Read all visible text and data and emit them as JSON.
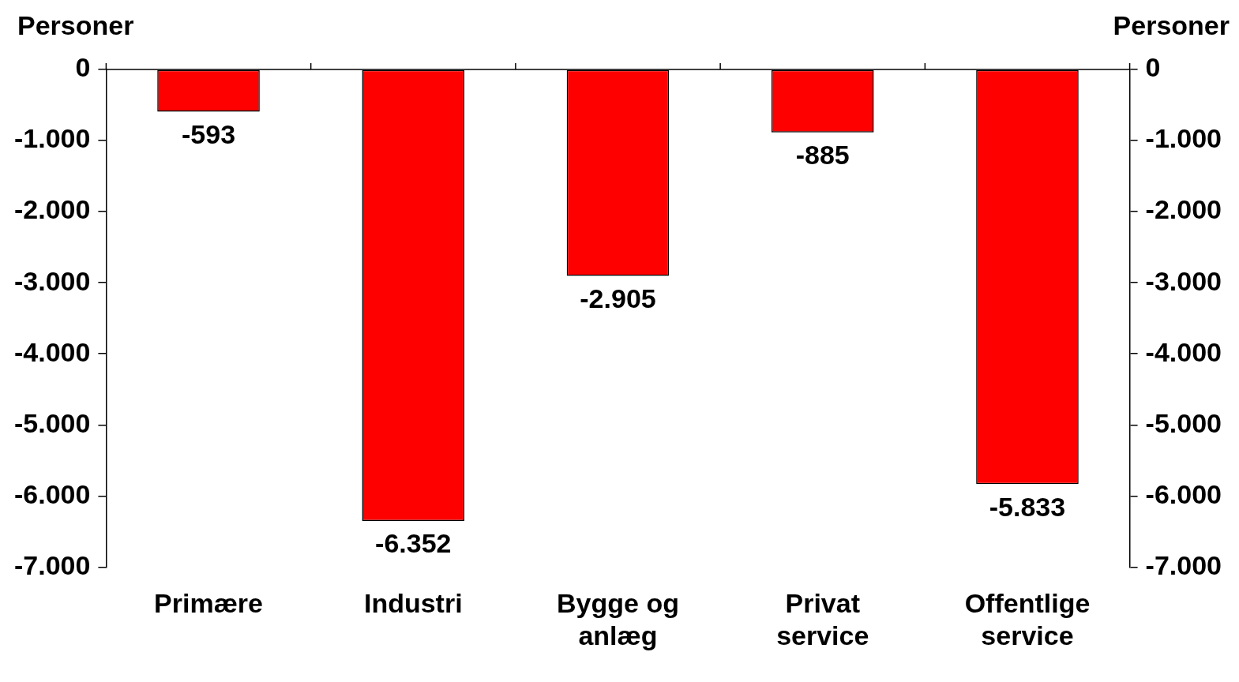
{
  "chart_data": {
    "type": "bar",
    "ylabel": "Personer",
    "y2label": "Personer",
    "categories": [
      "Primære",
      "Industri",
      "Bygge og anlæg",
      "Privat service",
      "Offentlige service"
    ],
    "values": [
      -593,
      -6352,
      -2905,
      -885,
      -5833
    ],
    "color": "#ff0000",
    "data_labels": true,
    "value_labels": [
      "-593",
      "-6.352",
      "-2.905",
      "-885",
      "-5.833"
    ],
    "ylim": [
      -7000,
      0
    ],
    "yticks": [
      {
        "value": -7000,
        "label": "-7.000"
      },
      {
        "value": -6000,
        "label": "-6.000"
      },
      {
        "value": -5000,
        "label": "-5.000"
      },
      {
        "value": -4000,
        "label": "-4.000"
      },
      {
        "value": -3000,
        "label": "-3.000"
      },
      {
        "value": -2000,
        "label": "-2.000"
      },
      {
        "value": -1000,
        "label": "-1.000"
      },
      {
        "value": 0,
        "label": "0"
      }
    ],
    "y2lim": [
      -7000,
      0
    ],
    "y2ticks": [
      {
        "value": -7000,
        "label": "-7.000"
      },
      {
        "value": -6000,
        "label": "-6.000"
      },
      {
        "value": -5000,
        "label": "-5.000"
      },
      {
        "value": -4000,
        "label": "-4.000"
      },
      {
        "value": -3000,
        "label": "-3.000"
      },
      {
        "value": -2000,
        "label": "-2.000"
      },
      {
        "value": -1000,
        "label": "-1.000"
      },
      {
        "value": 0,
        "label": "0"
      }
    ],
    "grid": false,
    "legend": false
  }
}
